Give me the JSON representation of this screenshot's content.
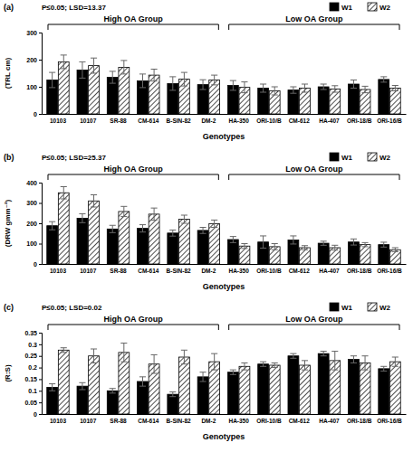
{
  "chart_data": [
    {
      "type": "bar",
      "panel_label": "(a)",
      "annotation": "P≤0.05; LSD=13.37",
      "y_label": "(TRL cm)",
      "x_label": "Genotypes",
      "categories": [
        "10103",
        "10107",
        "SR-88",
        "CM-614",
        "B-SIN-82",
        "DM-2",
        "HA-350",
        "ORI-10/B",
        "CM-612",
        "HA-407",
        "ORI-18/B",
        "ORI-16/B"
      ],
      "groups": [
        {
          "label": "High OA Group",
          "categories": [
            "10103",
            "10107",
            "SR-88",
            "CM-614",
            "B-SIN-82",
            "DM-2"
          ]
        },
        {
          "label": "Low OA Group",
          "categories": [
            "HA-350",
            "ORI-10/B",
            "CM-612",
            "HA-407",
            "ORI-18/B",
            "ORI-16/B"
          ]
        }
      ],
      "series": [
        {
          "name": "W1",
          "color": "#000000",
          "marker": "solid",
          "values": [
            125,
            162,
            135,
            122,
            112,
            108,
            105,
            95,
            88,
            100,
            110,
            127
          ],
          "errors": [
            28,
            30,
            22,
            25,
            25,
            18,
            18,
            15,
            12,
            10,
            15,
            10
          ]
        },
        {
          "name": "W2",
          "color": "#000000",
          "marker": "hatch",
          "values": [
            192,
            178,
            172,
            143,
            128,
            125,
            98,
            85,
            95,
            92,
            90,
            95
          ],
          "errors": [
            25,
            28,
            25,
            22,
            25,
            18,
            20,
            15,
            15,
            12,
            12,
            10
          ]
        }
      ],
      "ylim": [
        0,
        300
      ],
      "yticks": [
        0,
        100,
        200,
        300
      ],
      "legend": "top-right",
      "grid": false
    },
    {
      "type": "bar",
      "panel_label": "(b)",
      "annotation": "P≤0.05; LSD=25.37",
      "y_label": "(DRW gmm⁻²)",
      "x_label": "Genotypes",
      "categories": [
        "10103",
        "10107",
        "SR-88",
        "CM-614",
        "B-SIN-82",
        "DM-2",
        "HA-350",
        "ORI-10/B",
        "CM-612",
        "HA-407",
        "ORI-18/B",
        "ORI-16/B"
      ],
      "groups": [
        {
          "label": "High OA Group",
          "categories": [
            "10103",
            "10107",
            "SR-88",
            "CM-614",
            "B-SIN-82",
            "DM-2"
          ]
        },
        {
          "label": "Low OA Group",
          "categories": [
            "HA-350",
            "ORI-10/B",
            "CM-612",
            "HA-407",
            "ORI-18/B",
            "ORI-16/B"
          ]
        }
      ],
      "series": [
        {
          "name": "W1",
          "color": "#000000",
          "marker": "solid",
          "values": [
            188,
            225,
            172,
            175,
            152,
            165,
            120,
            108,
            118,
            102,
            108,
            95
          ],
          "errors": [
            20,
            22,
            18,
            18,
            15,
            15,
            15,
            30,
            20,
            10,
            15,
            12
          ]
        },
        {
          "name": "W2",
          "color": "#000000",
          "marker": "hatch",
          "values": [
            350,
            310,
            258,
            245,
            220,
            198,
            88,
            85,
            80,
            80,
            95,
            70
          ],
          "errors": [
            30,
            30,
            25,
            30,
            20,
            18,
            12,
            15,
            10,
            12,
            10,
            10
          ]
        }
      ],
      "ylim": [
        0,
        400
      ],
      "yticks": [
        0,
        100,
        200,
        300,
        400
      ],
      "legend": "top-right",
      "grid": false
    },
    {
      "type": "bar",
      "panel_label": "(c)",
      "annotation": "P≤0.05; LSD=0.02",
      "y_label": "(R:S)",
      "x_label": "Genotypes",
      "categories": [
        "10103",
        "10107",
        "SR-88",
        "CM-614",
        "B-SIN-82",
        "DM-2",
        "HA-350",
        "ORI-10/B",
        "CM-612",
        "HA-407",
        "ORI-18/B",
        "ORI-16/B"
      ],
      "groups": [
        {
          "label": "High OA Group",
          "categories": [
            "10103",
            "10107",
            "SR-88",
            "CM-614",
            "B-SIN-82",
            "DM-2"
          ]
        },
        {
          "label": "Low OA Group",
          "categories": [
            "HA-350",
            "ORI-10/B",
            "CM-612",
            "HA-407",
            "ORI-18/B",
            "ORI-16/B"
          ]
        }
      ],
      "series": [
        {
          "name": "W1",
          "color": "#000000",
          "marker": "solid",
          "values": [
            0.115,
            0.12,
            0.1,
            0.14,
            0.085,
            0.16,
            0.18,
            0.215,
            0.25,
            0.26,
            0.235,
            0.195
          ],
          "errors": [
            0.015,
            0.015,
            0.01,
            0.02,
            0.01,
            0.02,
            0.01,
            0.01,
            0.01,
            0.01,
            0.015,
            0.01
          ]
        },
        {
          "name": "W2",
          "color": "#000000",
          "marker": "hatch",
          "values": [
            0.275,
            0.25,
            0.265,
            0.215,
            0.245,
            0.225,
            0.205,
            0.21,
            0.21,
            0.23,
            0.22,
            0.225
          ],
          "errors": [
            0.01,
            0.03,
            0.04,
            0.04,
            0.03,
            0.035,
            0.015,
            0.01,
            0.02,
            0.04,
            0.03,
            0.02
          ]
        }
      ],
      "ylim": [
        0,
        0.35
      ],
      "yticks": [
        0,
        0.05,
        0.1,
        0.15,
        0.2,
        0.25,
        0.3,
        0.35
      ],
      "legend": "top-right",
      "grid": false
    }
  ]
}
